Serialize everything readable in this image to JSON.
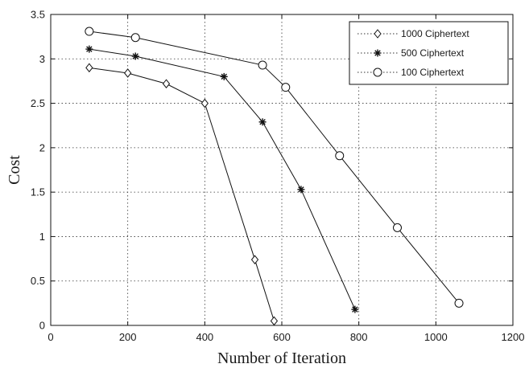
{
  "chart_data": {
    "type": "line",
    "xlabel": "Number of Iteration",
    "ylabel": "Cost",
    "xlim": [
      0,
      1200
    ],
    "ylim": [
      0,
      3.5
    ],
    "xticks": [
      0,
      200,
      400,
      600,
      800,
      1000,
      1200
    ],
    "yticks": [
      0,
      0.5,
      1,
      1.5,
      2,
      2.5,
      3,
      3.5
    ],
    "xtick_labels": [
      "0",
      "200",
      "400",
      "600",
      "800",
      "1000",
      "1200"
    ],
    "ytick_labels": [
      "0",
      "0.5",
      "1",
      "1.5",
      "2",
      "2.5",
      "3",
      "3.5"
    ],
    "grid": true,
    "grid_style": "dotted",
    "legend_position": "top-right",
    "series": [
      {
        "name": "1000 Ciphertext",
        "marker": "diamond",
        "x": [
          100,
          200,
          300,
          400,
          530,
          580
        ],
        "y": [
          2.9,
          2.84,
          2.72,
          2.5,
          0.74,
          0.05
        ]
      },
      {
        "name": "500 Ciphertext",
        "marker": "star",
        "x": [
          100,
          220,
          450,
          550,
          650,
          790
        ],
        "y": [
          3.11,
          3.03,
          2.8,
          2.29,
          1.53,
          0.18
        ]
      },
      {
        "name": "100 Ciphertext",
        "marker": "circle",
        "x": [
          100,
          220,
          550,
          610,
          750,
          900,
          1060
        ],
        "y": [
          3.31,
          3.24,
          2.93,
          2.68,
          1.91,
          1.1,
          0.25
        ]
      }
    ]
  }
}
